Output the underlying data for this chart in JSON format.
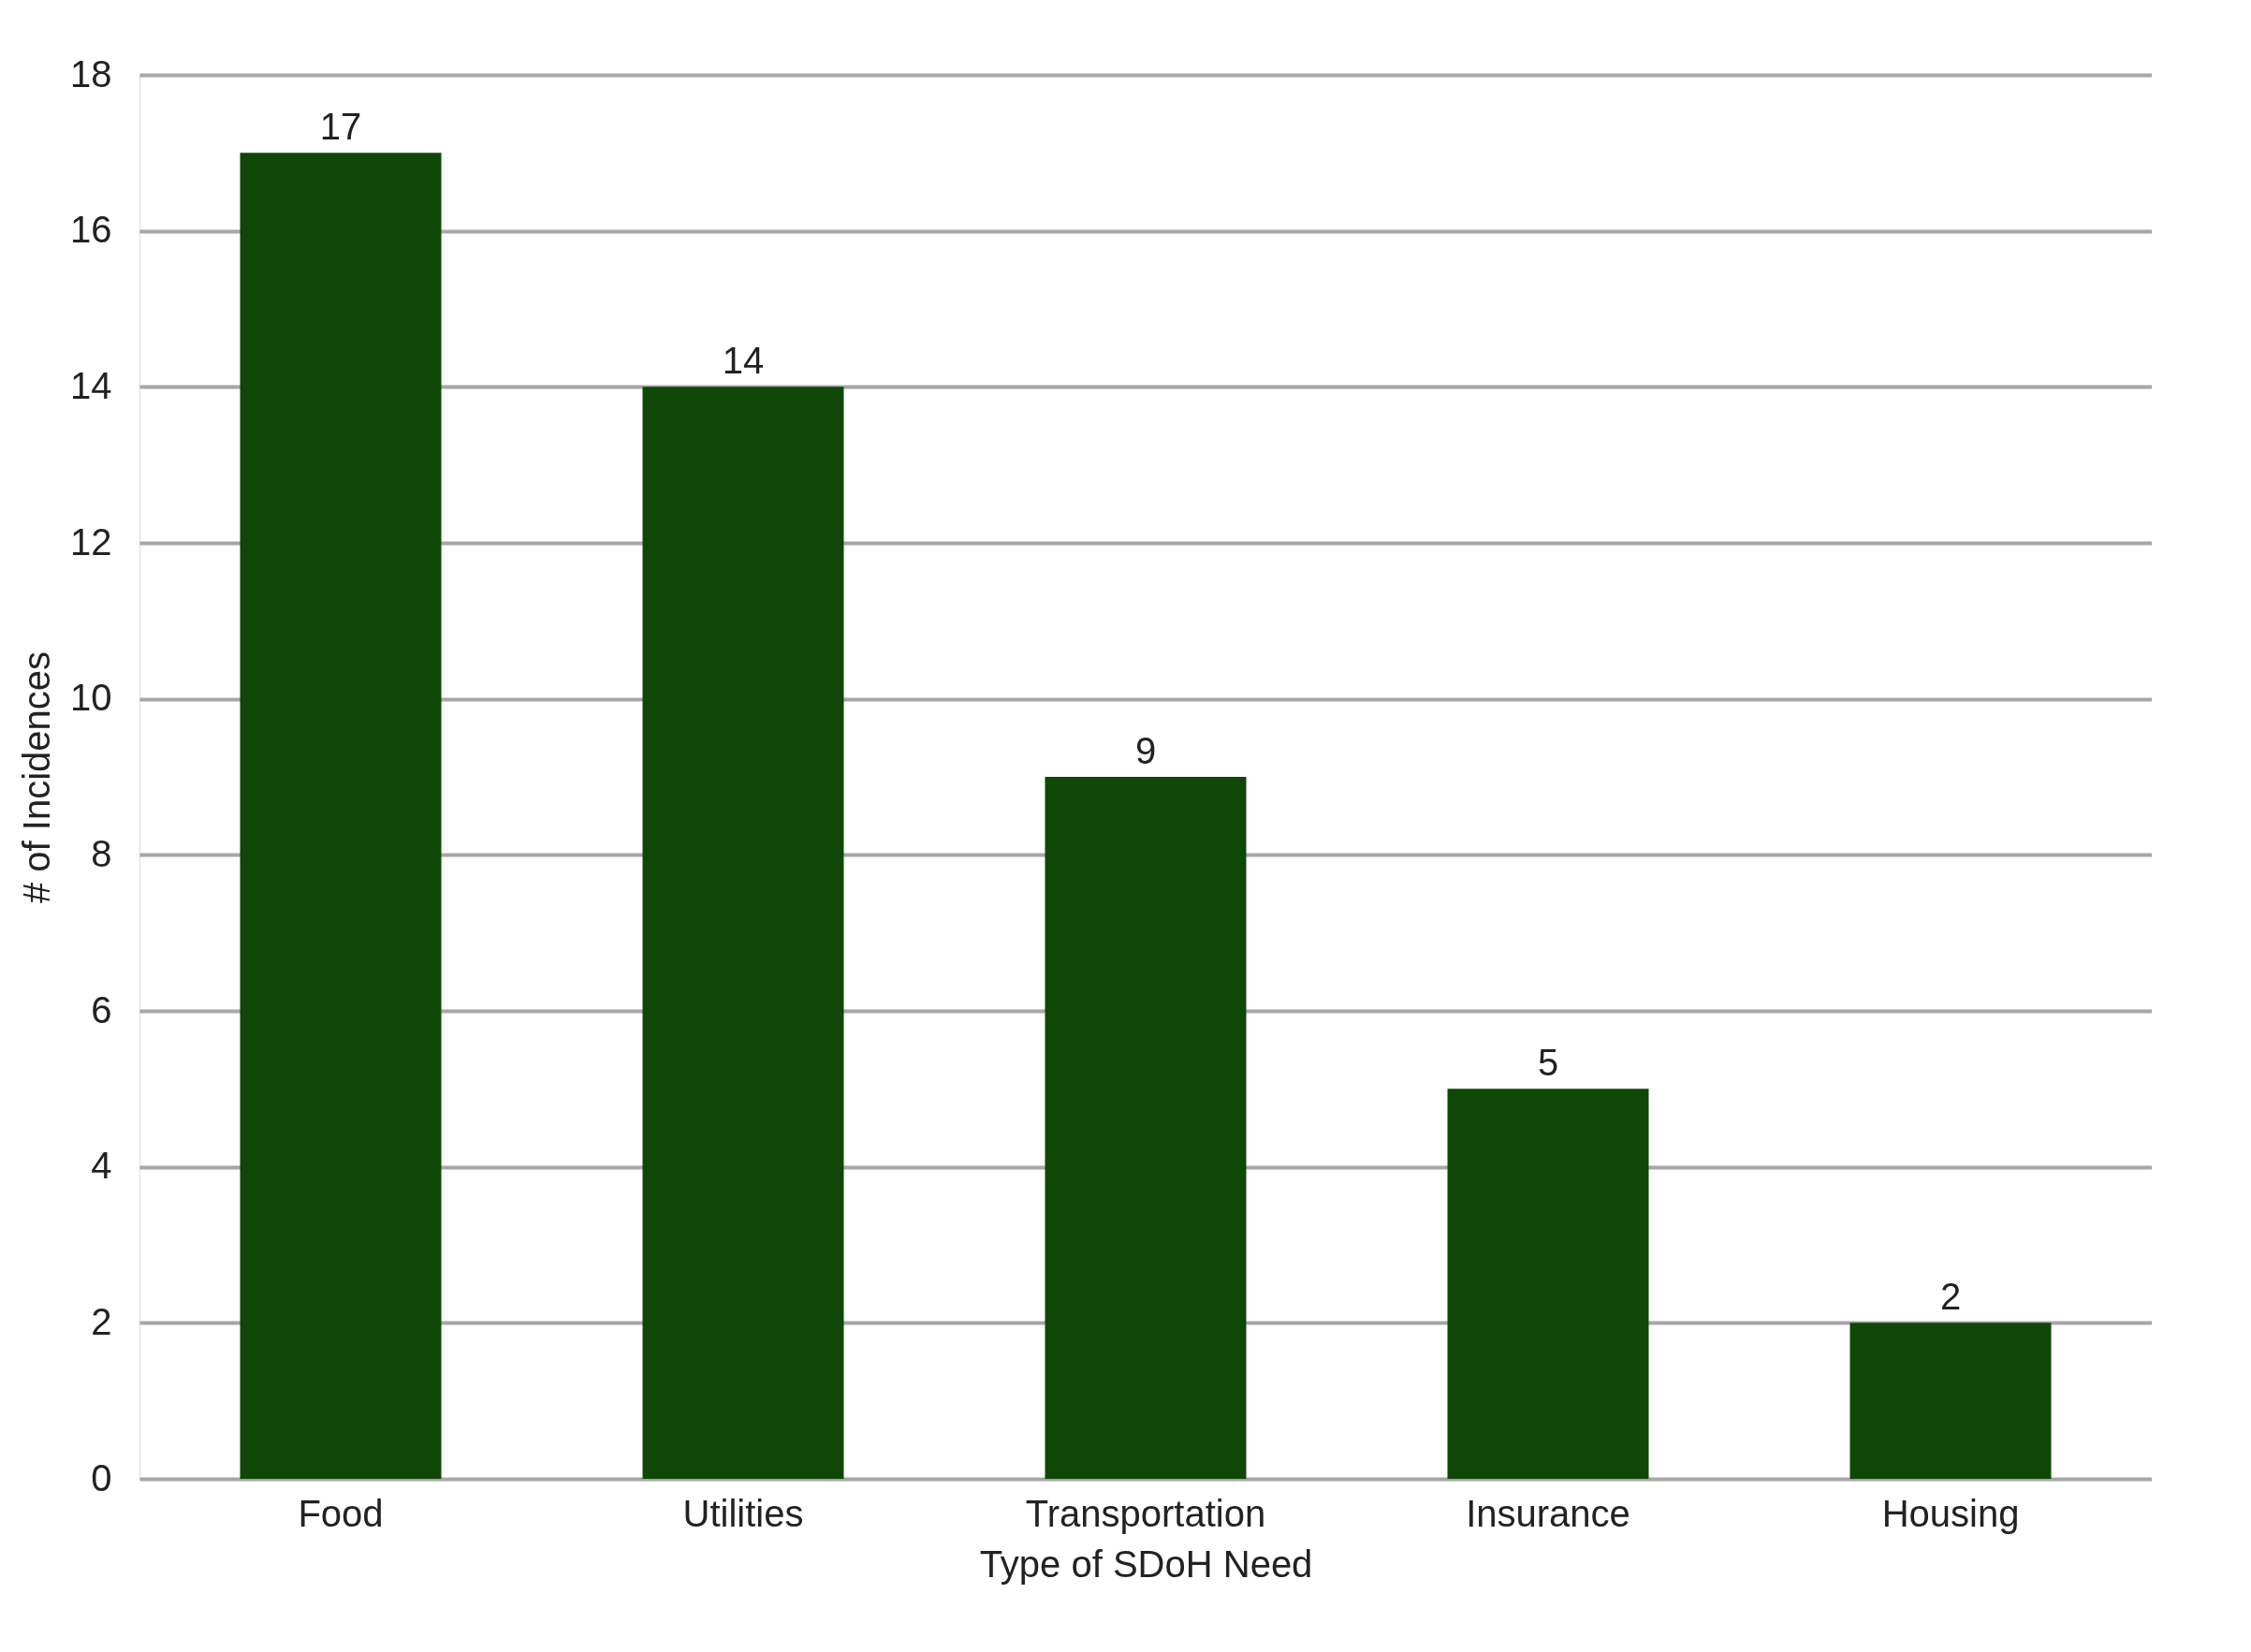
{
  "chart_data": {
    "type": "bar",
    "xlabel": "Type of SDoH Need",
    "ylabel": "# of Incidences",
    "categories": [
      "Food",
      "Utilities",
      "Transportation",
      "Insurance",
      "Housing"
    ],
    "values": [
      17,
      14,
      9,
      5,
      2
    ],
    "color": "#0f4706",
    "ylim": [
      0,
      18
    ],
    "yticks": [
      0,
      2,
      4,
      6,
      8,
      10,
      12,
      14,
      16,
      18
    ],
    "grid": "y",
    "data_labels": true
  }
}
